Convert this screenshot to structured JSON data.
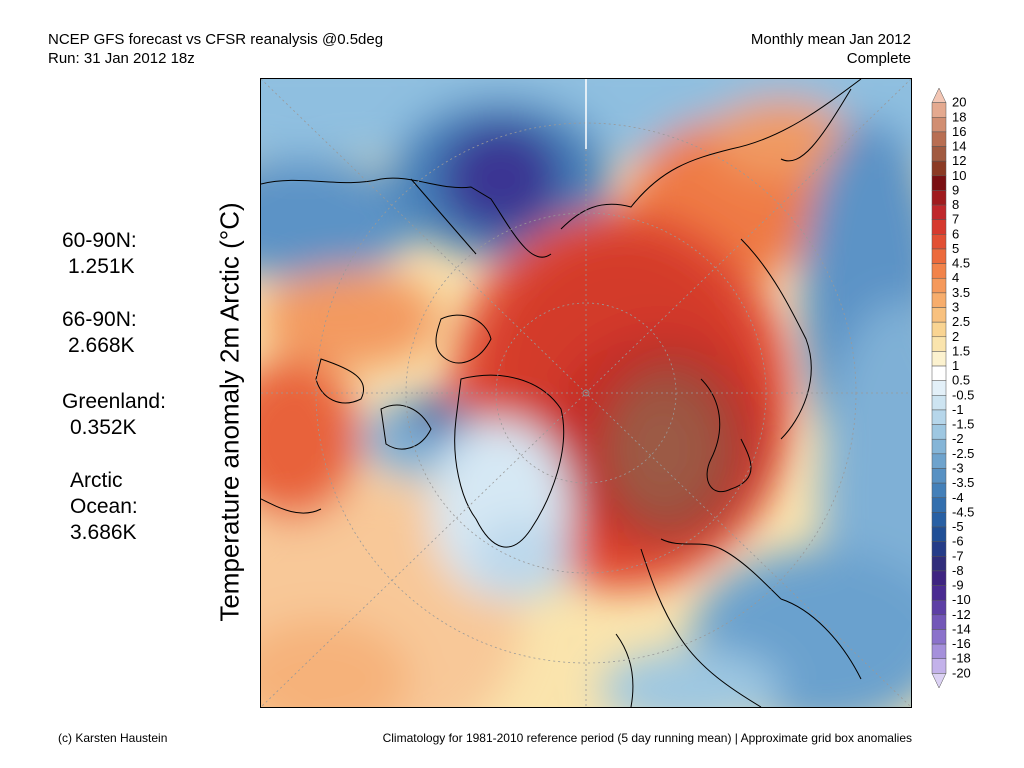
{
  "header": {
    "left_line1": "NCEP GFS forecast vs CFSR reanalysis @0.5deg",
    "left_line2": "Run: 31 Jan 2012 18z",
    "right_line1": "Monthly mean Jan 2012",
    "right_line2": "Complete"
  },
  "ylabel": "Temperature anomaly 2m Arctic (°C)",
  "stats": [
    {
      "label": "60-90N:",
      "value": "1.251K"
    },
    {
      "label": "66-90N:",
      "value": "2.668K"
    },
    {
      "label": "Greenland:",
      "value": "0.352K"
    },
    {
      "label_line1": "Arctic",
      "label_line2": "Ocean:",
      "value": "3.686K"
    }
  ],
  "colorbar": {
    "levels": [
      "20",
      "18",
      "16",
      "14",
      "12",
      "10",
      "9",
      "8",
      "7",
      "6",
      "5",
      "4.5",
      "4",
      "3.5",
      "3",
      "2.5",
      "2",
      "1.5",
      "1",
      "0.5",
      "-0.5",
      "-1",
      "-1.5",
      "-2",
      "-2.5",
      "-3",
      "-3.5",
      "-4",
      "-4.5",
      "-5",
      "-6",
      "-7",
      "-8",
      "-9",
      "-10",
      "-12",
      "-14",
      "-16",
      "-18",
      "-20"
    ],
    "colors": [
      "#f3c6b4",
      "#e4a98f",
      "#d18e72",
      "#b86e52",
      "#a15a40",
      "#8b3a24",
      "#7a0f12",
      "#a01b1e",
      "#c0272b",
      "#d6392e",
      "#e24f33",
      "#ec6a3c",
      "#f2834a",
      "#f5995b",
      "#f7ad6c",
      "#f8c17f",
      "#f9d492",
      "#fae4ad",
      "#fcf2cf",
      "#ffffff",
      "#e3f0f8",
      "#cde4f1",
      "#b6d6ea",
      "#9ec7e1",
      "#85b5d7",
      "#6ea3cd",
      "#5891c3",
      "#4480b9",
      "#336fae",
      "#2860a4",
      "#204f96",
      "#253c88",
      "#302d7b",
      "#3e2481",
      "#4a2b92",
      "#5d3fa5",
      "#7357b8",
      "#8b72cb",
      "#a590db",
      "#c3b2ea",
      "#dcd2f4"
    ]
  },
  "footer": {
    "left": "(c) Karsten Haustein",
    "right": "Climatology for 1981-2010 reference period (5 day running mean) | Approximate grid box anomalies"
  }
}
